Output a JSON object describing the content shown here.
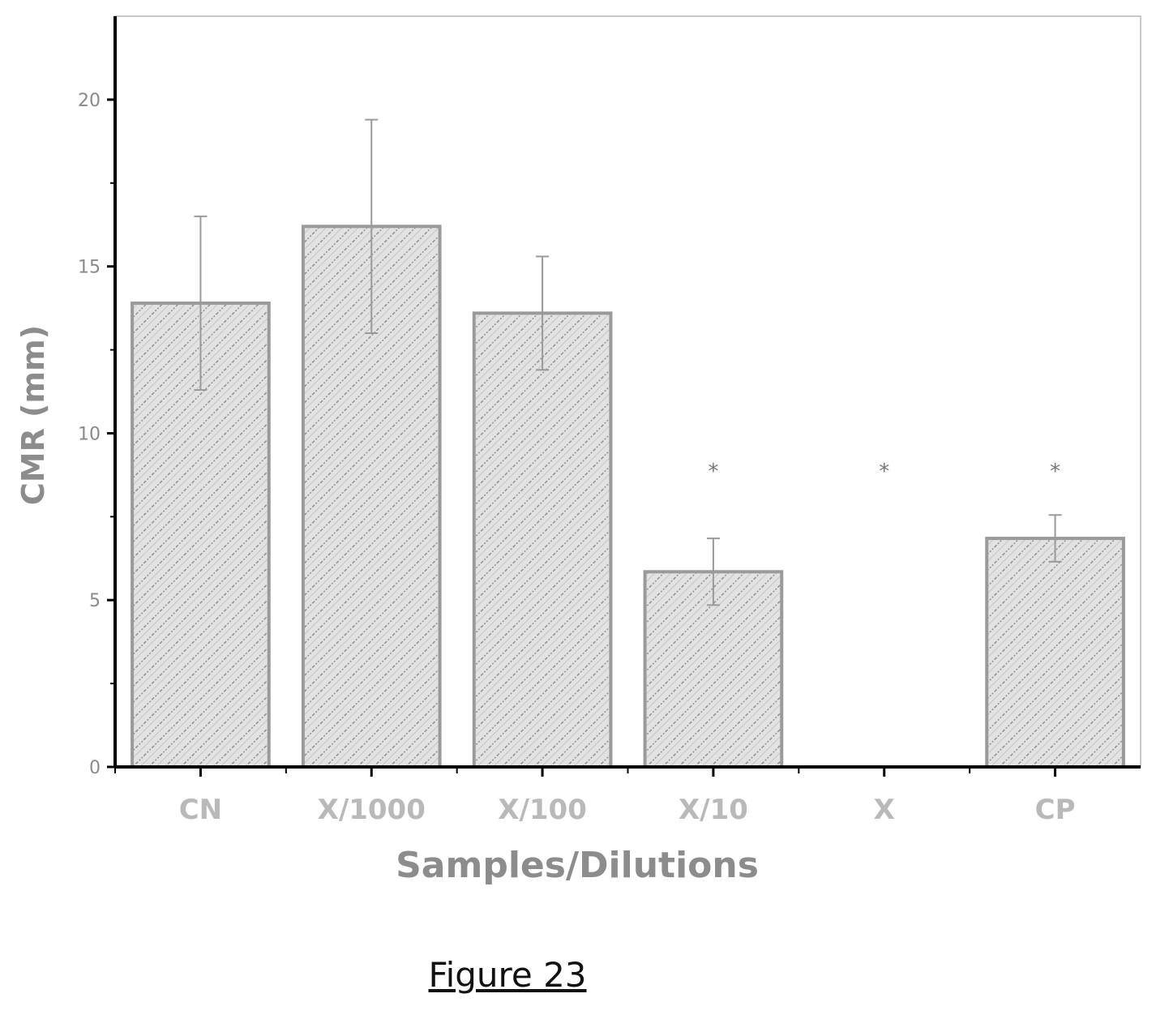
{
  "chart_data": {
    "type": "bar",
    "categories": [
      "CN",
      "X/1000",
      "X/100",
      "X/10",
      "X",
      "CP"
    ],
    "values": [
      13.9,
      16.2,
      13.6,
      5.85,
      0,
      6.85
    ],
    "errors": [
      2.6,
      3.2,
      1.7,
      1.0,
      0,
      0.7
    ],
    "significance": [
      "",
      "",
      "",
      "*",
      "*",
      "*"
    ],
    "xlabel": "Samples/Dilutions",
    "ylabel": "CMR (mm)",
    "ylim": [
      0,
      22.5
    ],
    "yticks": [
      0,
      5,
      10,
      15,
      20
    ],
    "ytick_labels": [
      "0",
      "5",
      "10",
      "15",
      "20"
    ],
    "grid": false,
    "colors": {
      "bar_fill": "#d9d9d9",
      "bar_hatch": "#8f8f8f",
      "bar_edge": "#9a9a9a",
      "axis": "#000000"
    }
  },
  "caption": "Figure 23"
}
